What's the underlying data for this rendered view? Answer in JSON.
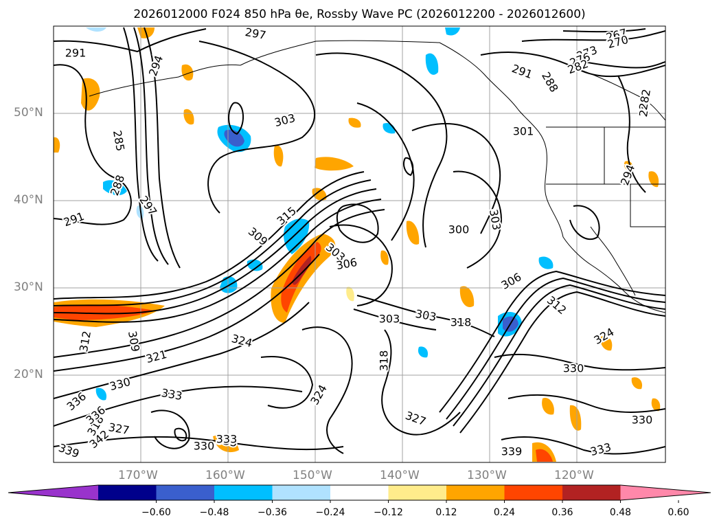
{
  "title": "2026012000 F024 850 hPa θe, Rossby Wave PC (2026012200 - 2026012600)",
  "lat_labels": [
    "50°N",
    "40°N",
    "30°N",
    "20°N"
  ],
  "lon_labels": [
    "170°W",
    "160°W",
    "150°W",
    "140°W",
    "130°W",
    "120°W"
  ],
  "colorbar": {
    "ticks": [
      "−0.60",
      "−0.48",
      "−0.36",
      "−0.24",
      "−0.12",
      "0.12",
      "0.24",
      "0.36",
      "0.48",
      "0.60"
    ],
    "colors": [
      "#9933cc",
      "#00008b",
      "#3a5fcd",
      "#00bfff",
      "#b0e2ff",
      "#ffffff",
      "#ffec8b",
      "#ffa500",
      "#ff4500",
      "#b22222",
      "#ff88aa"
    ]
  },
  "contour_labels": [
    "291",
    "294",
    "297",
    "267",
    "270",
    "273",
    "276",
    "282",
    "285",
    "291",
    "288",
    "282",
    "303",
    "301",
    "285",
    "288",
    "294",
    "291",
    "297",
    "315",
    "309",
    "303",
    "306",
    "300",
    "303",
    "303",
    "303",
    "318",
    "318",
    "312",
    "309",
    "324",
    "312",
    "321",
    "306",
    "324",
    "318",
    "324",
    "330",
    "330",
    "333",
    "339",
    "327",
    "333",
    "330",
    "327",
    "336",
    "339",
    "333",
    "330",
    "333",
    "336",
    "342"
  ],
  "colors": {
    "warm_strong": "#ff4500",
    "warm_mid": "#ffa500",
    "warm_light": "#ffec8b",
    "cool_mid": "#00bfff",
    "cool_strong": "#3a5fcd",
    "cool_light": "#b0e2ff",
    "grid": "#a0a0a0"
  }
}
